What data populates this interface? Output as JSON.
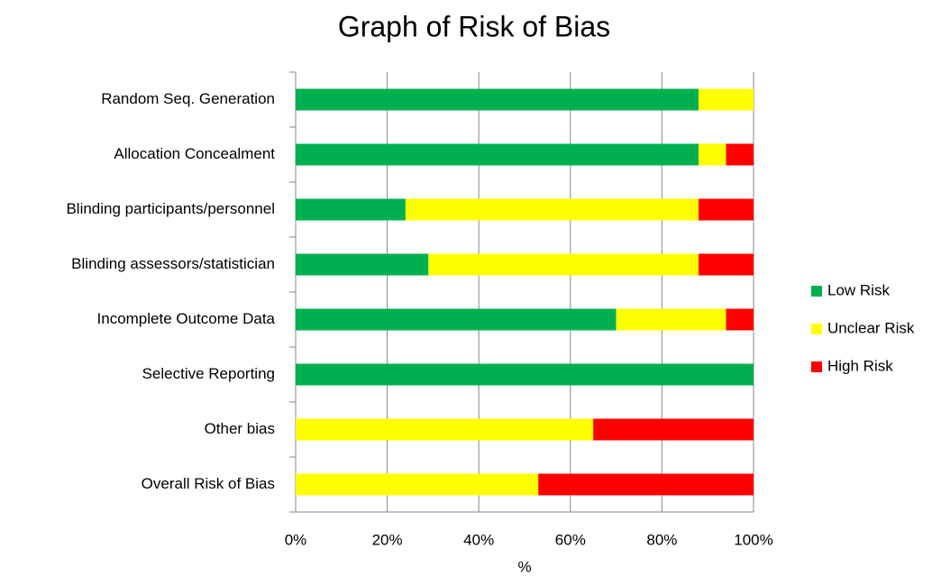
{
  "chart_data": {
    "type": "stacked-bar-horizontal",
    "title": "Graph of Risk of Bias",
    "x_label": "%",
    "categories": [
      "Random Seq. Generation",
      "Allocation Concealment",
      "Blinding participants/personnel",
      "Blinding assessors/statistician",
      "Incomplete Outcome Data",
      "Selective Reporting",
      "Other bias",
      "Overall Risk of Bias"
    ],
    "series": [
      {
        "name": "Low Risk",
        "color": "#00b050",
        "values": [
          88,
          88,
          24,
          29,
          70,
          100,
          0,
          0
        ]
      },
      {
        "name": "Unclear Risk",
        "color": "#ffff00",
        "values": [
          12,
          6,
          64,
          59,
          24,
          0,
          65,
          53
        ]
      },
      {
        "name": "High Risk",
        "color": "#ff0000",
        "values": [
          0,
          6,
          12,
          12,
          6,
          0,
          35,
          47
        ]
      }
    ],
    "xlim": [
      0,
      100
    ],
    "xticks": [
      {
        "value": 0,
        "label": "0%"
      },
      {
        "value": 20,
        "label": "20%"
      },
      {
        "value": 40,
        "label": "40%"
      },
      {
        "value": 60,
        "label": "60%"
      },
      {
        "value": 80,
        "label": "80%"
      },
      {
        "value": 100,
        "label": "100%"
      }
    ],
    "grid": true,
    "legend": "right"
  }
}
